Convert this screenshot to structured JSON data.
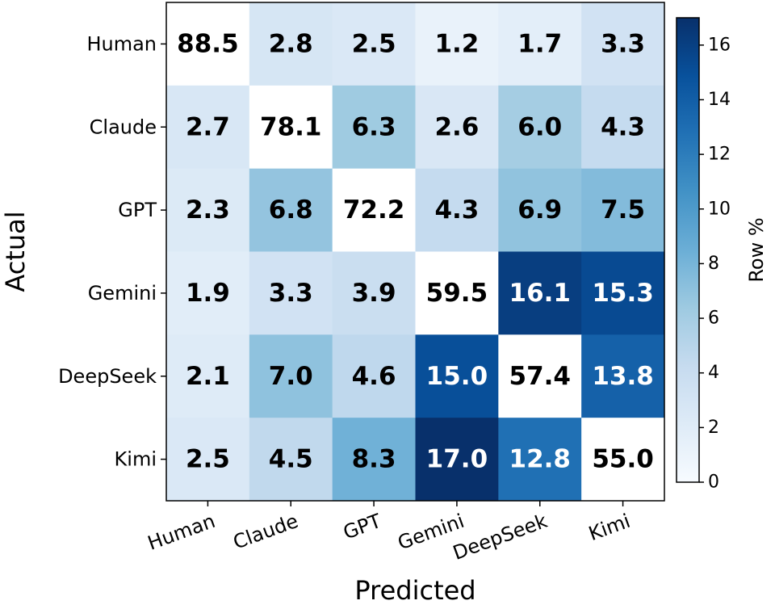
{
  "chart_data": {
    "type": "heatmap",
    "title": "",
    "xlabel": "Predicted",
    "ylabel": "Actual",
    "x_categories": [
      "Human",
      "Claude",
      "GPT",
      "Gemini",
      "DeepSeek",
      "Kimi"
    ],
    "y_categories": [
      "Human",
      "Claude",
      "GPT",
      "Gemini",
      "DeepSeek",
      "Kimi"
    ],
    "values": [
      [
        88.5,
        2.8,
        2.5,
        1.2,
        1.7,
        3.3
      ],
      [
        2.7,
        78.1,
        6.3,
        2.6,
        6.0,
        4.3
      ],
      [
        2.3,
        6.8,
        72.2,
        4.3,
        6.9,
        7.5
      ],
      [
        1.9,
        3.3,
        3.9,
        59.5,
        16.1,
        15.3
      ],
      [
        2.1,
        7.0,
        4.6,
        15.0,
        57.4,
        13.8
      ],
      [
        2.5,
        4.5,
        8.3,
        17.0,
        12.8,
        55.0
      ]
    ],
    "diagonal_masked": true,
    "value_format": "0.0",
    "colormap": "Blues",
    "colorbar": {
      "label": "Row %",
      "range": [
        0,
        17
      ],
      "ticks": [
        "0",
        "2",
        "4",
        "6",
        "8",
        "10",
        "12",
        "14",
        "16"
      ]
    },
    "grid": false
  }
}
